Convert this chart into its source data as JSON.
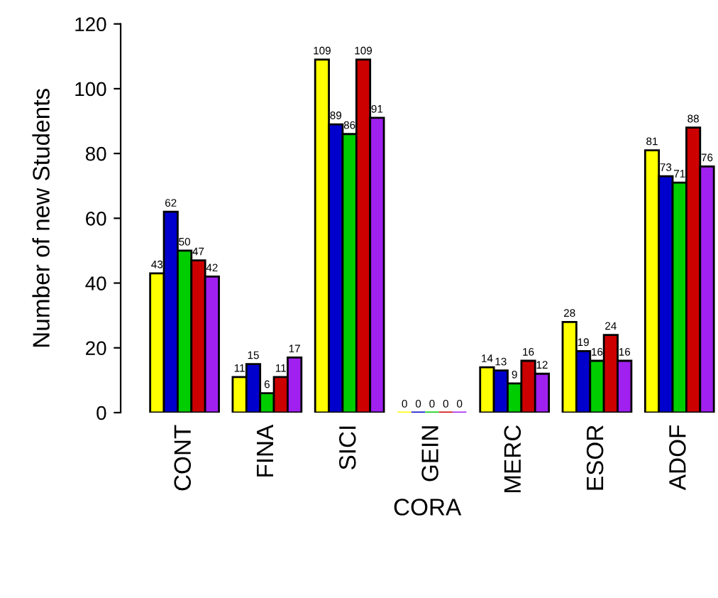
{
  "chart_data": {
    "type": "bar",
    "xlabel": "CORA",
    "ylabel": "Number of new Students",
    "categories": [
      "CONT",
      "FINA",
      "SICI",
      "GEIN",
      "MERC",
      "ESOR",
      "ADOF"
    ],
    "series": [
      {
        "color": "#ffff00",
        "values": [
          43,
          11,
          109,
          0,
          14,
          28,
          81
        ]
      },
      {
        "color": "#0000cd",
        "values": [
          62,
          15,
          89,
          0,
          13,
          19,
          73
        ]
      },
      {
        "color": "#00cd00",
        "values": [
          50,
          6,
          86,
          0,
          9,
          16,
          71
        ]
      },
      {
        "color": "#cd0000",
        "values": [
          47,
          11,
          109,
          0,
          16,
          24,
          88
        ]
      },
      {
        "color": "#a020f0",
        "values": [
          42,
          17,
          91,
          0,
          12,
          16,
          76
        ]
      }
    ],
    "ylim": [
      0,
      120
    ],
    "yticks": [
      0,
      20,
      40,
      60,
      80,
      100,
      120
    ],
    "data_labels": true,
    "grid": false
  }
}
